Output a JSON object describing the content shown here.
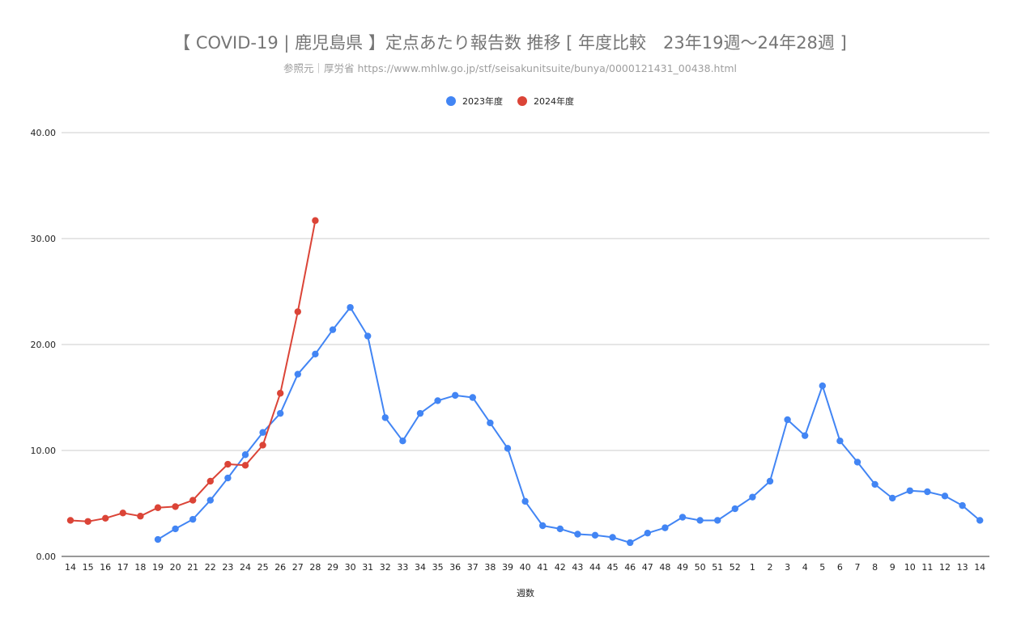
{
  "chart_data": {
    "type": "line",
    "title": "【 COVID-19 | 鹿児島県 】定点あたり報告数 推移 [ 年度比較　23年19週〜24年28週 ]",
    "subtitle": "参照元｜厚労省 https://www.mhlw.go.jp/stf/seisakunitsuite/bunya/0000121431_00438.html",
    "xlabel": "週数",
    "ylabel": "",
    "ylim": [
      0,
      40
    ],
    "yticks": [
      "0.00",
      "10.00",
      "20.00",
      "30.00",
      "40.00"
    ],
    "ytick_values": [
      0,
      10,
      20,
      30,
      40
    ],
    "grid": true,
    "legend_position": "top",
    "categories": [
      "14",
      "15",
      "16",
      "17",
      "18",
      "19",
      "20",
      "21",
      "22",
      "23",
      "24",
      "25",
      "26",
      "27",
      "28",
      "29",
      "30",
      "31",
      "32",
      "33",
      "34",
      "35",
      "36",
      "37",
      "38",
      "39",
      "40",
      "41",
      "42",
      "43",
      "44",
      "45",
      "46",
      "47",
      "48",
      "49",
      "50",
      "51",
      "52",
      "1",
      "2",
      "3",
      "4",
      "5",
      "6",
      "7",
      "8",
      "9",
      "10",
      "11",
      "12",
      "13",
      "14"
    ],
    "series": [
      {
        "name": "2023年度",
        "color": "#4285f4",
        "values": [
          null,
          null,
          null,
          null,
          null,
          1.6,
          2.6,
          3.5,
          5.3,
          7.4,
          9.6,
          11.7,
          13.5,
          17.2,
          19.1,
          21.4,
          23.5,
          20.8,
          13.1,
          10.9,
          13.5,
          14.7,
          15.2,
          15.0,
          12.6,
          10.2,
          5.2,
          2.9,
          2.6,
          2.1,
          2.0,
          1.8,
          1.3,
          2.2,
          2.7,
          3.7,
          3.4,
          3.4,
          4.5,
          5.6,
          7.1,
          12.9,
          11.4,
          16.1,
          10.9,
          8.9,
          6.8,
          5.5,
          6.2,
          6.1,
          5.7,
          4.8,
          3.4
        ]
      },
      {
        "name": "2024年度",
        "color": "#db4437",
        "values": [
          3.4,
          3.3,
          3.6,
          4.1,
          3.8,
          4.6,
          4.7,
          5.3,
          7.1,
          8.7,
          8.6,
          10.5,
          15.4,
          23.1,
          31.7,
          null,
          null,
          null,
          null,
          null,
          null,
          null,
          null,
          null,
          null,
          null,
          null,
          null,
          null,
          null,
          null,
          null,
          null,
          null,
          null,
          null,
          null,
          null,
          null,
          null,
          null,
          null,
          null,
          null,
          null,
          null,
          null,
          null,
          null,
          null,
          null,
          null,
          null
        ]
      }
    ]
  }
}
